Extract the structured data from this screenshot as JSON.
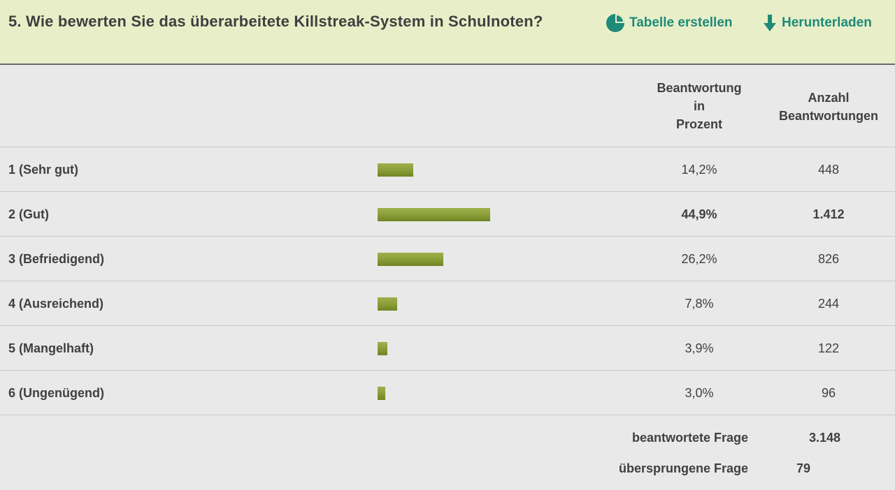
{
  "question": {
    "title": "5. Wie bewerten Sie das überarbeitete Killstreak-System in Schulnoten?"
  },
  "actions": {
    "create_table": "Tabelle erstellen",
    "download": "Herunterladen",
    "accent_color": "#1e8a78"
  },
  "table": {
    "headers": {
      "percent": "Beantwortung\nin\nProzent",
      "count": "Anzahl\nBeantwortungen"
    },
    "bar_color": "#8ea03a",
    "rows": [
      {
        "label": "1 (Sehr gut)",
        "percent_text": "14,2%",
        "percent": 14.2,
        "count": "448"
      },
      {
        "label": "2 (Gut)",
        "percent_text": "44,9%",
        "percent": 44.9,
        "count": "1.412"
      },
      {
        "label": "3 (Befriedigend)",
        "percent_text": "26,2%",
        "percent": 26.2,
        "count": "826"
      },
      {
        "label": "4 (Ausreichend)",
        "percent_text": "7,8%",
        "percent": 7.8,
        "count": "244"
      },
      {
        "label": "5 (Mangelhaft)",
        "percent_text": "3,9%",
        "percent": 3.9,
        "count": "122"
      },
      {
        "label": "6 (Ungenügend)",
        "percent_text": "3,0%",
        "percent": 3.0,
        "count": "96"
      }
    ]
  },
  "summary": {
    "answered_label": "beantwortete Frage",
    "answered_value": "3.148",
    "skipped_label": "übersprungene Frage",
    "skipped_value": "79"
  }
}
